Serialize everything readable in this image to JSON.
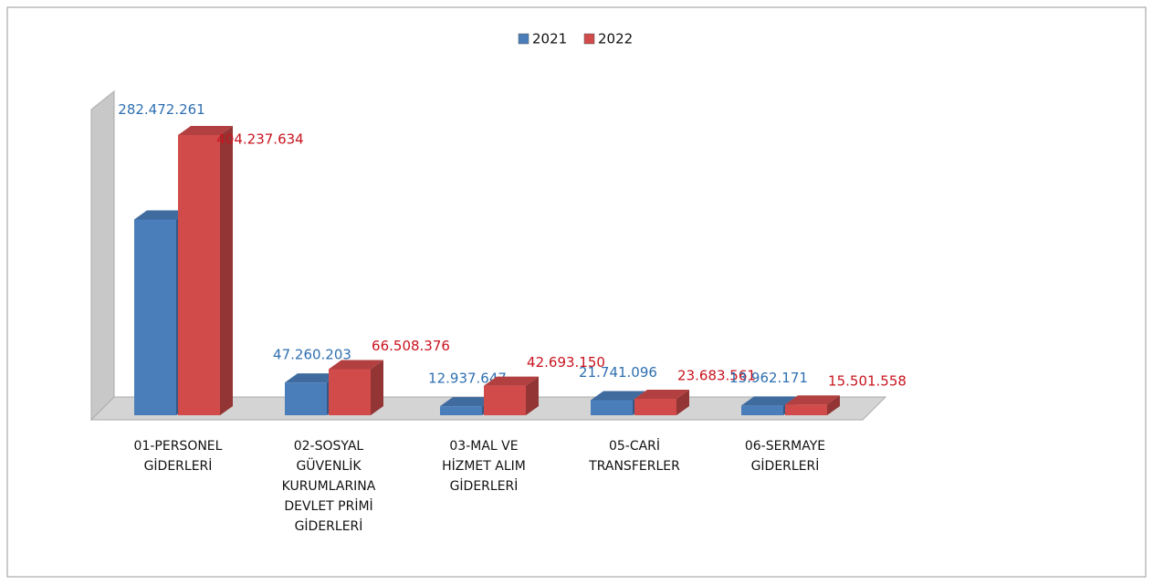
{
  "chart_data": {
    "type": "bar",
    "categories": [
      "01-PERSONEL GİDERLERİ",
      "02-SOSYAL GÜVENLİK KURUMLARINA DEVLET PRİMİ GİDERLERİ",
      "03-MAL VE HİZMET ALIM GİDERLERİ",
      "05-CARİ TRANSFERLER",
      "06-SERMAYE GİDERLERİ"
    ],
    "series": [
      {
        "name": "2021",
        "color": "#4a7ebb",
        "label_color": "#2e6fb0",
        "values": [
          282472261,
          47260203,
          12937647,
          21741096,
          13962171
        ],
        "value_labels": [
          "282.472.261",
          "47.260.203",
          "12.937.647",
          "21.741.096",
          "13.962.171"
        ]
      },
      {
        "name": "2022",
        "color": "#d24b4b",
        "label_color": "#c8141e",
        "values": [
          404237634,
          66508376,
          42693150,
          23683561,
          15501558
        ],
        "value_labels": [
          "404.237.634",
          "66.508.376",
          "42.693.150",
          "23.683.561",
          "15.501.558"
        ]
      }
    ],
    "legend": "top"
  }
}
